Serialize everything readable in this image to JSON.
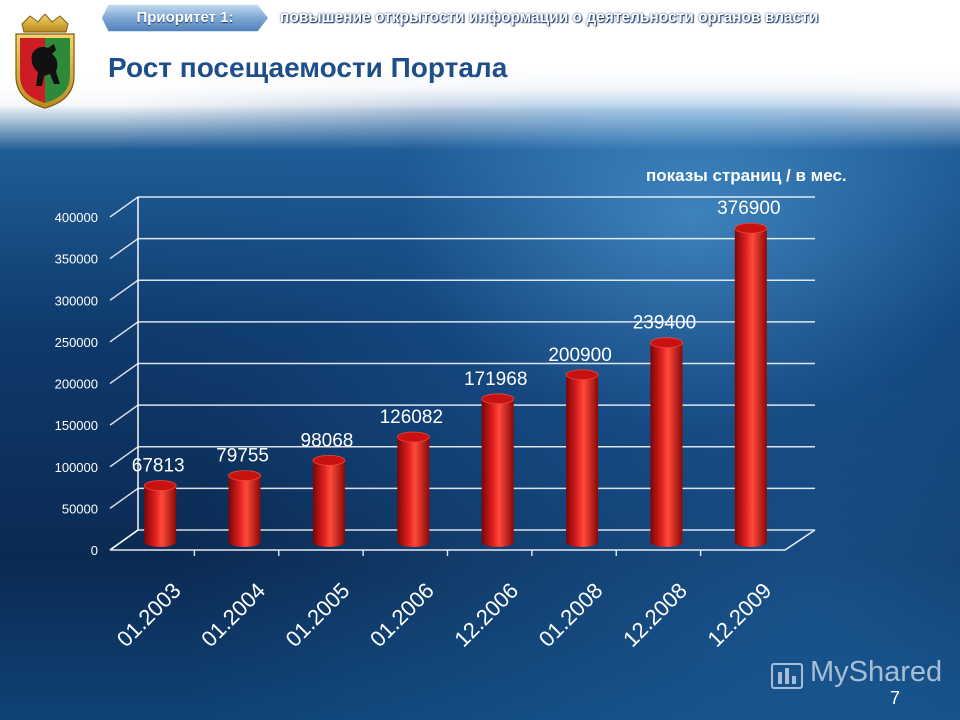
{
  "header": {
    "priority_label": "Приоритет 1:",
    "priority_text": "повышение открытости информации о деятельности органов власти",
    "title": "Рост посещаемости Портала"
  },
  "footer": {
    "logo_text": "MyShared",
    "page_number": "7"
  },
  "colors": {
    "bar": "#d21414",
    "bar_dark": "#7a0606",
    "title": "#1f4f8a"
  },
  "chart_data": {
    "type": "bar",
    "note": "показы страниц / в мес.",
    "categories": [
      "01.2003",
      "01.2004",
      "01.2005",
      "01.2006",
      "12.2006",
      "01.2008",
      "12.2008",
      "12.2009"
    ],
    "values": [
      67813,
      79755,
      98068,
      126082,
      171968,
      200900,
      239400,
      376900
    ],
    "data_labels": [
      "67813",
      "79755",
      "98068",
      "126082",
      "171968",
      "200900",
      "239400",
      "376900"
    ],
    "yticks": [
      "0",
      "50000",
      "100000",
      "150000",
      "200000",
      "250000",
      "300000",
      "350000",
      "400000"
    ],
    "ylim": [
      0,
      400000
    ],
    "grid": true,
    "legend": "none"
  }
}
